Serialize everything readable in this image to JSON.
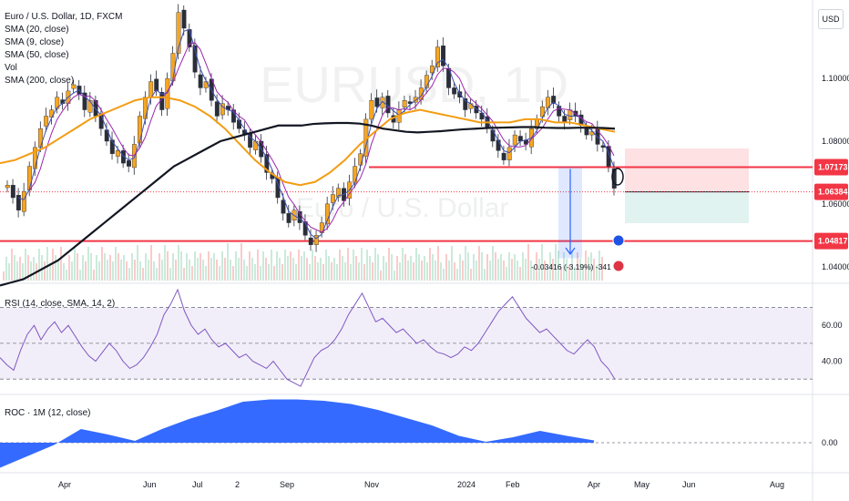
{
  "header": {
    "symbol_title": "Euro / U.S. Dollar, 1D, FXCM",
    "indicators": [
      "SMA (20, close)",
      "SMA (9, close)",
      "SMA (50, close)",
      "Vol",
      "SMA (200, close)"
    ],
    "watermark_symbol": "EURUSD, 1D",
    "watermark_name": "Euro / U.S. Dollar",
    "currency": "USD"
  },
  "chart_data": [
    {
      "type": "candlestick",
      "panel": "main",
      "x_ticks": [
        "Apr",
        "Jun",
        "Jul",
        "2",
        "Sep",
        "Nov",
        "2024",
        "Feb",
        "Apr",
        "May",
        "Jun",
        "Aug"
      ],
      "y_ticks": [
        "1.10000",
        "1.08000",
        "1.06000",
        "1.04000"
      ],
      "ylim": [
        1.035,
        1.125
      ],
      "price_levels": [
        {
          "value": 1.07173,
          "label": "1.07173",
          "color": "#f23645"
        },
        {
          "value": 1.06384,
          "label": "1.06384",
          "color": "#f23645"
        },
        {
          "value": 1.04817,
          "label": "1.04817",
          "color": "#f23645"
        }
      ],
      "measure_label": "-0.03416 (-3.19%) -341",
      "close_series": [
        1.066,
        1.062,
        1.058,
        1.064,
        1.072,
        1.078,
        1.084,
        1.088,
        1.09,
        1.094,
        1.092,
        1.096,
        1.098,
        1.095,
        1.09,
        1.093,
        1.088,
        1.084,
        1.08,
        1.076,
        1.077,
        1.073,
        1.072,
        1.079,
        1.088,
        1.094,
        1.099,
        1.096,
        1.09,
        1.1,
        1.108,
        1.121,
        1.116,
        1.11,
        1.102,
        1.097,
        1.099,
        1.093,
        1.088,
        1.092,
        1.09,
        1.086,
        1.084,
        1.082,
        1.078,
        1.08,
        1.075,
        1.07,
        1.068,
        1.062,
        1.057,
        1.054,
        1.058,
        1.054,
        1.05,
        1.047,
        1.05,
        1.054,
        1.06,
        1.063,
        1.065,
        1.061,
        1.067,
        1.072,
        1.076,
        1.087,
        1.093,
        1.091,
        1.094,
        1.089,
        1.086,
        1.09,
        1.093,
        1.092,
        1.094,
        1.097,
        1.101,
        1.104,
        1.11,
        1.104,
        1.097,
        1.095,
        1.094,
        1.09,
        1.092,
        1.089,
        1.087,
        1.084,
        1.08,
        1.077,
        1.074,
        1.078,
        1.082,
        1.08,
        1.079,
        1.084,
        1.087,
        1.091,
        1.094,
        1.092,
        1.088,
        1.086,
        1.09,
        1.088,
        1.085,
        1.082,
        1.083,
        1.079,
        1.078,
        1.072,
        1.065
      ],
      "sma_200": [
        1.034,
        1.035,
        1.036,
        1.038,
        1.04,
        1.042,
        1.045,
        1.048,
        1.051,
        1.054,
        1.057,
        1.06,
        1.063,
        1.066,
        1.069,
        1.072,
        1.074,
        1.076,
        1.078,
        1.08,
        1.081,
        1.082,
        1.083,
        1.084,
        1.085,
        1.085,
        1.085,
        1.0855,
        1.0857,
        1.0858,
        1.0858,
        1.0856,
        1.085,
        1.084,
        1.0835,
        1.083,
        1.0828,
        1.083,
        1.0832,
        1.0835,
        1.0838,
        1.084,
        1.0842,
        1.0843,
        1.0844,
        1.0845,
        1.0845,
        1.0843,
        1.0842,
        1.0842,
        1.0843,
        1.0843,
        1.0842,
        1.084
      ],
      "sma_50": [
        1.073,
        1.074,
        1.076,
        1.078,
        1.081,
        1.084,
        1.087,
        1.089,
        1.091,
        1.093,
        1.094,
        1.094,
        1.093,
        1.091,
        1.088,
        1.084,
        1.079,
        1.074,
        1.07,
        1.067,
        1.066,
        1.067,
        1.07,
        1.074,
        1.079,
        1.083,
        1.087,
        1.089,
        1.09,
        1.089,
        1.088,
        1.087,
        1.086,
        1.086,
        1.086,
        1.087,
        1.087,
        1.086,
        1.086,
        1.085,
        1.084,
        1.083
      ]
    },
    {
      "type": "line",
      "panel": "rsi",
      "title": "RSI (14, close, SMA, 14, 2)",
      "y_ticks": [
        "60.00",
        "40.00"
      ],
      "ylim": [
        24,
        82
      ],
      "bands": [
        70,
        50,
        30
      ],
      "values": [
        42,
        38,
        35,
        46,
        55,
        60,
        52,
        58,
        62,
        56,
        60,
        54,
        48,
        43,
        40,
        45,
        50,
        46,
        40,
        36,
        38,
        42,
        48,
        55,
        66,
        72,
        80,
        68,
        60,
        55,
        58,
        52,
        48,
        50,
        46,
        42,
        44,
        40,
        38,
        36,
        40,
        35,
        30,
        28,
        26,
        34,
        42,
        46,
        48,
        52,
        58,
        66,
        72,
        78,
        70,
        62,
        64,
        60,
        56,
        58,
        54,
        50,
        52,
        48,
        45,
        44,
        42,
        44,
        48,
        46,
        50,
        56,
        62,
        68,
        72,
        76,
        70,
        64,
        60,
        56,
        58,
        54,
        50,
        46,
        44,
        48,
        52,
        48,
        40,
        36,
        30
      ]
    },
    {
      "type": "area",
      "panel": "roc",
      "title": "ROC · 1M (12, close)",
      "y_ticks": [
        "0.00"
      ],
      "ylim": [
        -0.6,
        1.0
      ],
      "values": [
        -0.55,
        -0.3,
        -0.05,
        0.3,
        0.18,
        0.04,
        0.3,
        0.52,
        0.7,
        0.9,
        0.95,
        0.95,
        0.92,
        0.85,
        0.72,
        0.55,
        0.38,
        0.15,
        0.02,
        0.12,
        0.26,
        0.15,
        0.05
      ]
    }
  ]
}
